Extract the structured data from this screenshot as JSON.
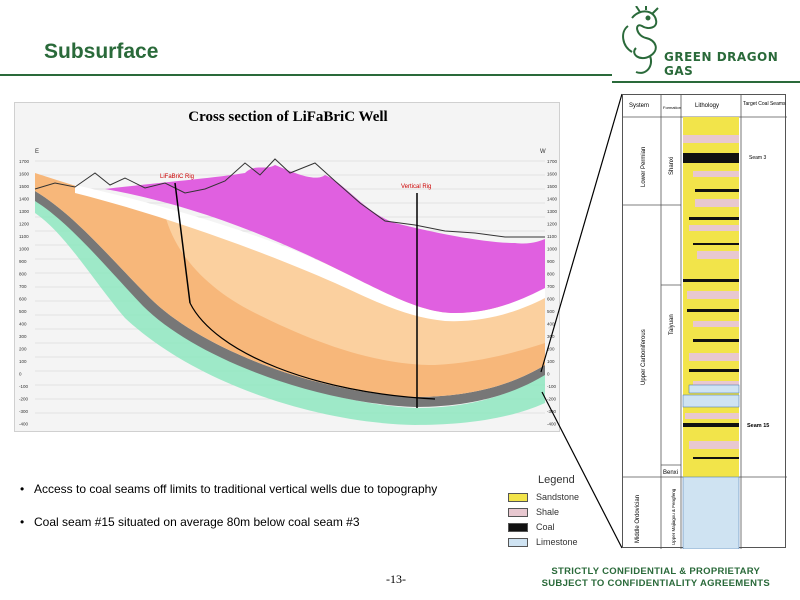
{
  "header": {
    "title": "Subsurface",
    "logo_text": "GREEN DRAGON GAS"
  },
  "cross_section": {
    "title": "Cross section of LiFaBriC Well",
    "compass_left": "E",
    "compass_right": "W",
    "well_labels": [
      "LiFaBriC Rig",
      "Vertical Rig"
    ],
    "axis_left": [
      "1700",
      "1600",
      "1500",
      "1400",
      "1300",
      "1200",
      "1100",
      "1000",
      "900",
      "800",
      "700",
      "600",
      "500",
      "400",
      "300",
      "200",
      "100",
      "0",
      "-100",
      "-200",
      "-300",
      "-400",
      "-500"
    ],
    "axis_right": [
      "1700",
      "1600",
      "1500",
      "1400",
      "1300",
      "1200",
      "1100",
      "1000",
      "900",
      "800",
      "700",
      "600",
      "500",
      "400",
      "300",
      "200",
      "100",
      "0",
      "-100",
      "-200",
      "-300",
      "-400",
      "-500"
    ]
  },
  "strat_column": {
    "headers": [
      "System",
      "Formation",
      "Lithology",
      "Target Coal Seams"
    ],
    "systems": [
      "Lower Permian",
      "Upper Carboniferous",
      "Middle Ordovician"
    ],
    "formations": [
      "Shanxi",
      "Taiyuan",
      "Benxi",
      "Upper Majiagou & Fengfeng"
    ],
    "seams": [
      "Seam 3",
      "Seam 15"
    ]
  },
  "legend": {
    "title": "Legend",
    "items": [
      {
        "label": "Sandstone",
        "color": "#f2e44a"
      },
      {
        "label": "Shale",
        "color": "#e8c8d0"
      },
      {
        "label": "Coal",
        "color": "#111111"
      },
      {
        "label": "Limestone",
        "color": "#cfe3f2"
      }
    ]
  },
  "bullets": [
    "Access to coal seams off limits to traditional vertical wells due to topography",
    "Coal seam #15 situated on average 80m below coal seam #3"
  ],
  "footer": {
    "page": "-13-",
    "confidential_line1": "STRICTLY CONFIDENTIAL & PROPRIETARY",
    "confidential_line2": "SUBJECT TO CONFIDENTIALITY AGREEMENTS"
  },
  "colors": {
    "brand": "#2a6a3a",
    "magenta": "#e060e0",
    "orange": "#f7b77a",
    "teal": "#8ee6c0"
  }
}
